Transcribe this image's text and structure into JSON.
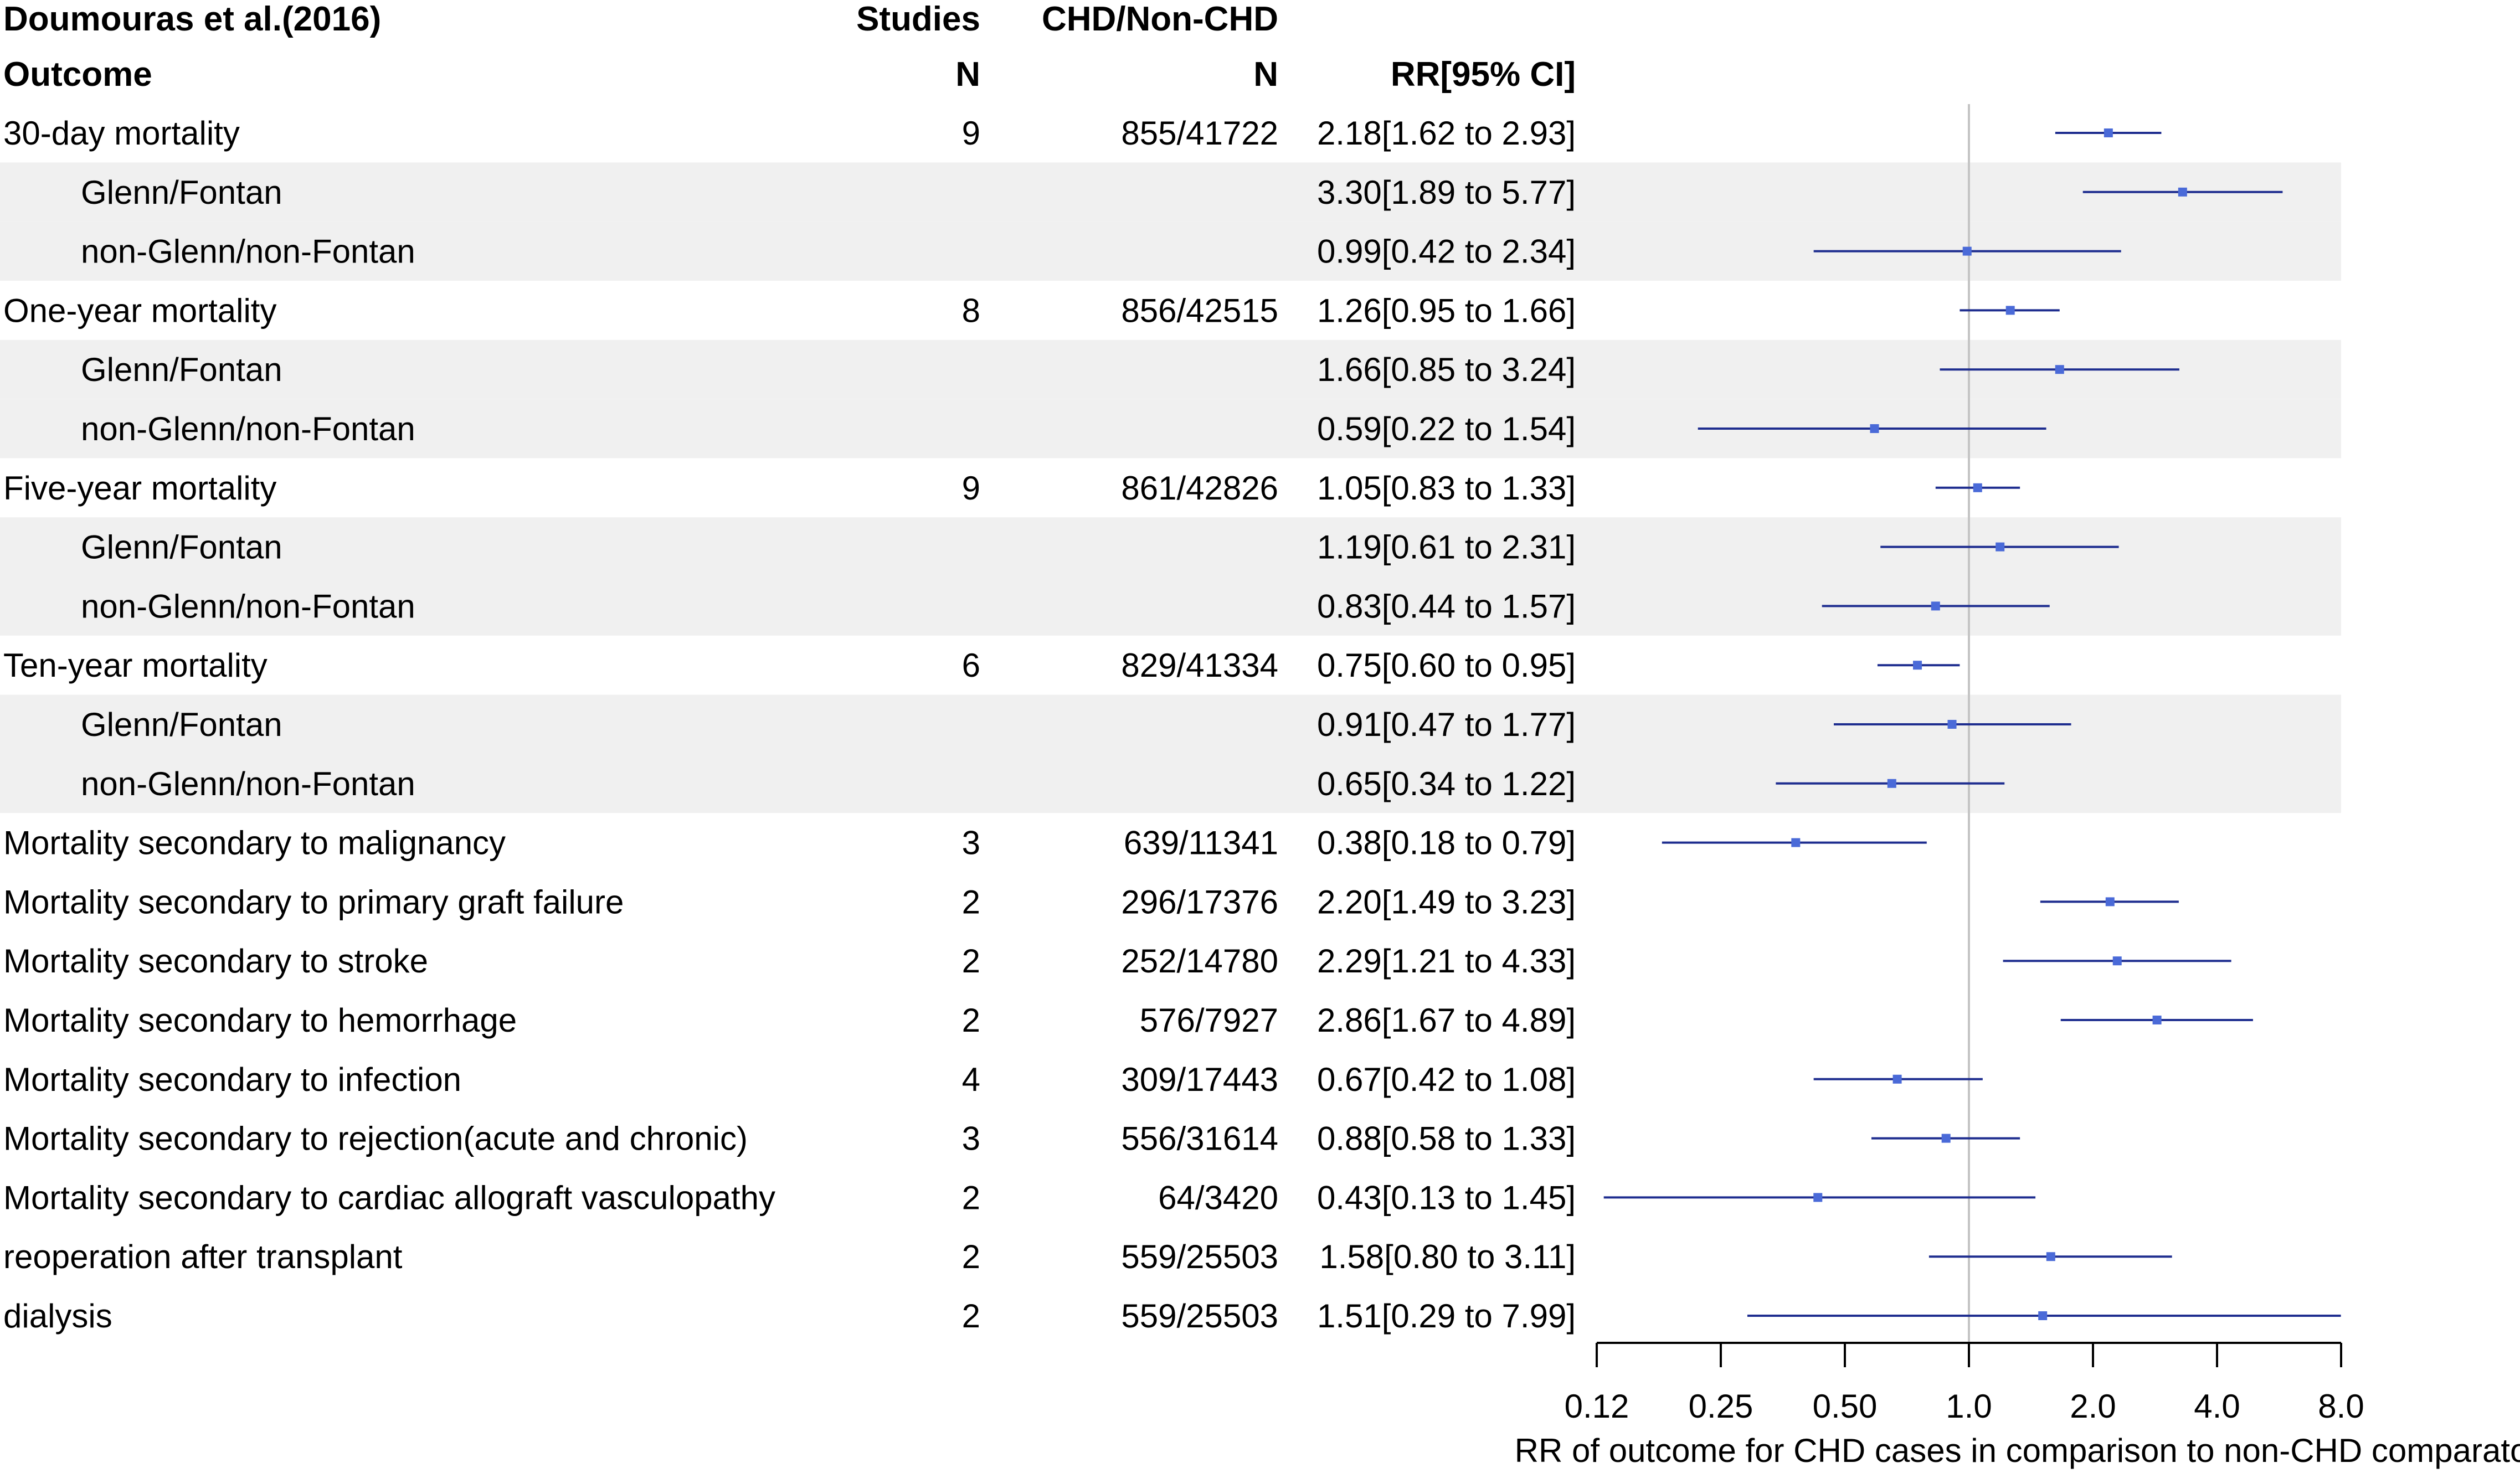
{
  "chart_data": {
    "type": "forest",
    "title": "Doumouras et al.(2016)",
    "columns": {
      "studies_top": "Studies",
      "ratio_top": "CHD/Non-CHD",
      "outcome": "Outcome",
      "studies": "N",
      "ratio": "N",
      "rr": "RR[95% CI]"
    },
    "xlabel": "RR of outcome for CHD cases in comparison to non-CHD comparator",
    "x_scale": "log2",
    "xlim": [
      0.125,
      8.0
    ],
    "reference_line": 1.0,
    "x_ticks": [
      0.125,
      0.25,
      0.5,
      1.0,
      2.0,
      4.0,
      8.0
    ],
    "x_tick_labels": [
      "0.12",
      "0.25",
      "0.50",
      "1.0",
      "2.0",
      "4.0",
      "8.0"
    ],
    "rows": [
      {
        "label": "30-day mortality",
        "indent": false,
        "shaded": false,
        "studies": "9",
        "n": "855/41722",
        "rr_text": "2.18[1.62 to 2.93]",
        "rr": 2.18,
        "lo": 1.62,
        "hi": 2.93
      },
      {
        "label": "Glenn/Fontan",
        "indent": true,
        "shaded": true,
        "studies": "",
        "n": "",
        "rr_text": "3.30[1.89 to 5.77]",
        "rr": 3.3,
        "lo": 1.89,
        "hi": 5.77
      },
      {
        "label": "non-Glenn/non-Fontan",
        "indent": true,
        "shaded": true,
        "studies": "",
        "n": "",
        "rr_text": "0.99[0.42 to 2.34]",
        "rr": 0.99,
        "lo": 0.42,
        "hi": 2.34
      },
      {
        "label": "One-year mortality",
        "indent": false,
        "shaded": false,
        "studies": "8",
        "n": "856/42515",
        "rr_text": "1.26[0.95 to 1.66]",
        "rr": 1.26,
        "lo": 0.95,
        "hi": 1.66
      },
      {
        "label": "Glenn/Fontan",
        "indent": true,
        "shaded": true,
        "studies": "",
        "n": "",
        "rr_text": "1.66[0.85 to 3.24]",
        "rr": 1.66,
        "lo": 0.85,
        "hi": 3.24
      },
      {
        "label": "non-Glenn/non-Fontan",
        "indent": true,
        "shaded": true,
        "studies": "",
        "n": "",
        "rr_text": "0.59[0.22 to 1.54]",
        "rr": 0.59,
        "lo": 0.22,
        "hi": 1.54
      },
      {
        "label": "Five-year mortality",
        "indent": false,
        "shaded": false,
        "studies": "9",
        "n": "861/42826",
        "rr_text": "1.05[0.83 to 1.33]",
        "rr": 1.05,
        "lo": 0.83,
        "hi": 1.33
      },
      {
        "label": "Glenn/Fontan",
        "indent": true,
        "shaded": true,
        "studies": "",
        "n": "",
        "rr_text": "1.19[0.61 to 2.31]",
        "rr": 1.19,
        "lo": 0.61,
        "hi": 2.31
      },
      {
        "label": "non-Glenn/non-Fontan",
        "indent": true,
        "shaded": true,
        "studies": "",
        "n": "",
        "rr_text": "0.83[0.44 to 1.57]",
        "rr": 0.83,
        "lo": 0.44,
        "hi": 1.57
      },
      {
        "label": "Ten-year mortality",
        "indent": false,
        "shaded": false,
        "studies": "6",
        "n": "829/41334",
        "rr_text": "0.75[0.60 to 0.95]",
        "rr": 0.75,
        "lo": 0.6,
        "hi": 0.95
      },
      {
        "label": "Glenn/Fontan",
        "indent": true,
        "shaded": true,
        "studies": "",
        "n": "",
        "rr_text": "0.91[0.47 to 1.77]",
        "rr": 0.91,
        "lo": 0.47,
        "hi": 1.77
      },
      {
        "label": "non-Glenn/non-Fontan",
        "indent": true,
        "shaded": true,
        "studies": "",
        "n": "",
        "rr_text": "0.65[0.34 to 1.22]",
        "rr": 0.65,
        "lo": 0.34,
        "hi": 1.22
      },
      {
        "label": "Mortality secondary to malignancy",
        "indent": false,
        "shaded": false,
        "studies": "3",
        "n": "639/11341",
        "rr_text": "0.38[0.18 to 0.79]",
        "rr": 0.38,
        "lo": 0.18,
        "hi": 0.79
      },
      {
        "label": "Mortality secondary to primary graft failure",
        "indent": false,
        "shaded": false,
        "studies": "2",
        "n": "296/17376",
        "rr_text": "2.20[1.49 to 3.23]",
        "rr": 2.2,
        "lo": 1.49,
        "hi": 3.23
      },
      {
        "label": "Mortality secondary to stroke",
        "indent": false,
        "shaded": false,
        "studies": "2",
        "n": "252/14780",
        "rr_text": "2.29[1.21 to 4.33]",
        "rr": 2.29,
        "lo": 1.21,
        "hi": 4.33
      },
      {
        "label": "Mortality secondary to hemorrhage",
        "indent": false,
        "shaded": false,
        "studies": "2",
        "n": "576/7927",
        "rr_text": "2.86[1.67 to 4.89]",
        "rr": 2.86,
        "lo": 1.67,
        "hi": 4.89
      },
      {
        "label": "Mortality secondary to infection",
        "indent": false,
        "shaded": false,
        "studies": "4",
        "n": "309/17443",
        "rr_text": "0.67[0.42 to 1.08]",
        "rr": 0.67,
        "lo": 0.42,
        "hi": 1.08
      },
      {
        "label": "Mortality secondary to rejection(acute and chronic)",
        "indent": false,
        "shaded": false,
        "studies": "3",
        "n": "556/31614",
        "rr_text": "0.88[0.58 to 1.33]",
        "rr": 0.88,
        "lo": 0.58,
        "hi": 1.33
      },
      {
        "label": "Mortality secondary to cardiac allograft vasculopathy",
        "indent": false,
        "shaded": false,
        "studies": "2",
        "n": "64/3420",
        "rr_text": "0.43[0.13 to 1.45]",
        "rr": 0.43,
        "lo": 0.13,
        "hi": 1.45
      },
      {
        "label": "reoperation after transplant",
        "indent": false,
        "shaded": false,
        "studies": "2",
        "n": "559/25503",
        "rr_text": "1.58[0.80 to 3.11]",
        "rr": 1.58,
        "lo": 0.8,
        "hi": 3.11
      },
      {
        "label": "dialysis",
        "indent": false,
        "shaded": false,
        "studies": "2",
        "n": "559/25503",
        "rr_text": "1.51[0.29 to 7.99]",
        "rr": 1.51,
        "lo": 0.29,
        "hi": 7.99
      }
    ],
    "colors": {
      "ci_line": "#1e2d8f",
      "point": "#4a6ad8",
      "shade": "#f0f0f0",
      "reference": "#c4c4c4",
      "axis": "#000000"
    }
  }
}
